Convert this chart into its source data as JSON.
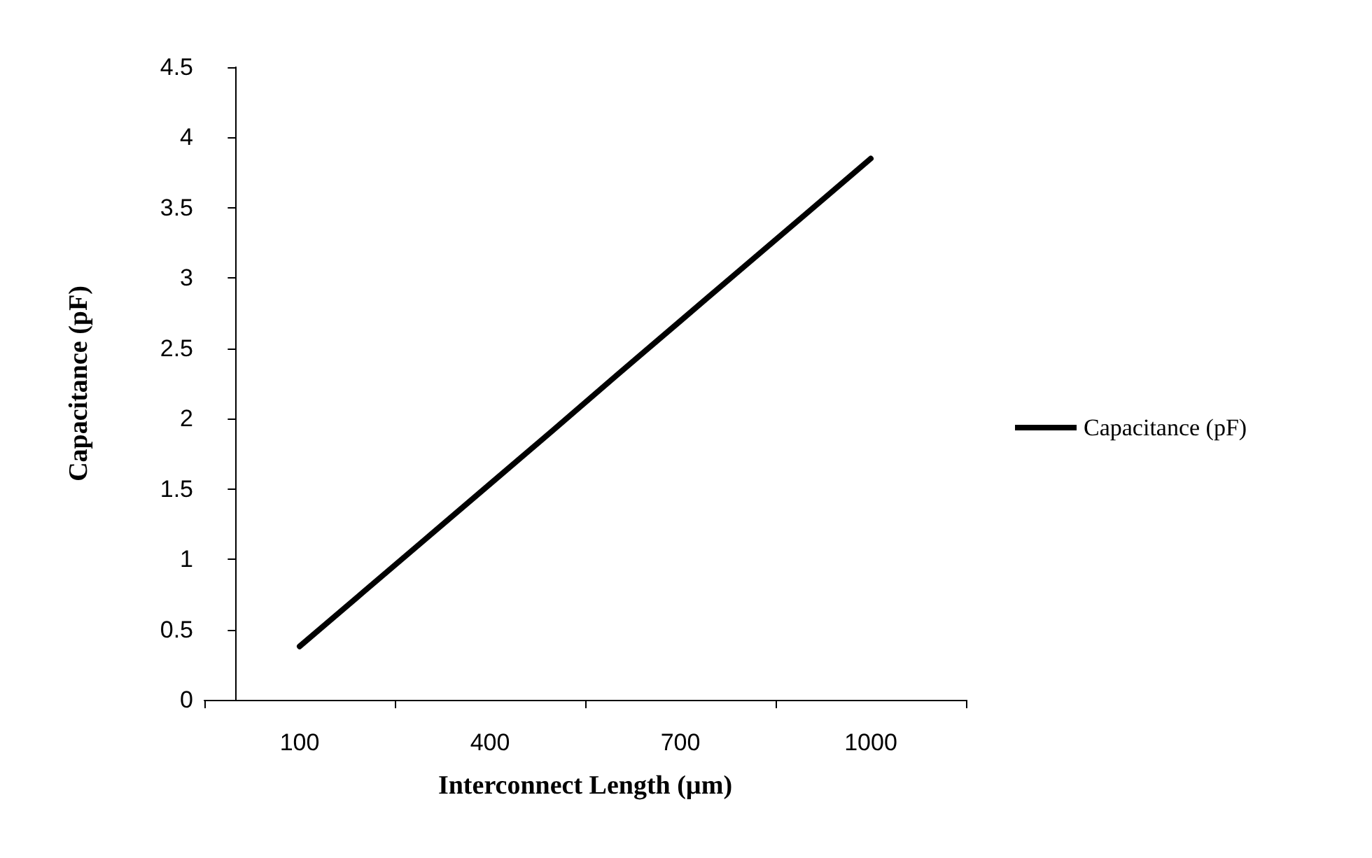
{
  "chart_data": {
    "type": "line",
    "xlabel": "Interconnect Length (µm)",
    "ylabel": "Capacitance (pF)",
    "x": [
      100,
      200,
      300,
      400,
      500,
      600,
      700,
      800,
      900,
      1000
    ],
    "series": [
      {
        "name": "Capacitance (pF)",
        "color": "#000000",
        "values": [
          0.38,
          0.765,
          1.15,
          1.535,
          1.92,
          2.31,
          2.695,
          3.08,
          3.465,
          3.85
        ]
      }
    ],
    "xlim": [
      -50,
      1150
    ],
    "xticks": [
      {
        "value": -50,
        "label": null
      },
      100,
      {
        "value": 250,
        "label": null
      },
      400,
      {
        "value": 550,
        "label": null
      },
      700,
      {
        "value": 850,
        "label": null
      },
      1000,
      {
        "value": 1150,
        "label": null
      }
    ],
    "ylim": [
      0,
      4.5
    ],
    "yticks": [
      0,
      0.5,
      1,
      1.5,
      2,
      2.5,
      3,
      3.5,
      4,
      4.5
    ],
    "grid": false,
    "legend": "right",
    "marker": "none",
    "line_style": "solid"
  }
}
